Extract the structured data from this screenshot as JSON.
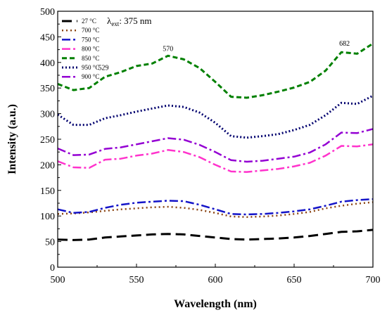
{
  "chart_data": {
    "type": "line",
    "xlabel": "Wavelength (nm)",
    "ylabel": "Intensity (a.u.)",
    "xlim": [
      500,
      700
    ],
    "ylim": [
      0,
      500
    ],
    "xticks": [
      500,
      550,
      600,
      650,
      700
    ],
    "yticks": [
      0,
      50,
      100,
      150,
      200,
      250,
      300,
      350,
      400,
      450,
      500
    ],
    "grid": false,
    "legend_position": "top-left",
    "excitation": {
      "symbol": "λ",
      "subscript": "ext",
      "text": ": 375 nm"
    },
    "annotations": [
      {
        "text": "529",
        "x": 529,
        "y": 376
      },
      {
        "text": "570",
        "x": 570,
        "y": 413
      },
      {
        "text": "682",
        "x": 682,
        "y": 423
      }
    ],
    "series": [
      {
        "name": "27 °C",
        "color": "#000000",
        "dash": "14,7",
        "width": 3,
        "x": [
          500,
          510,
          520,
          530,
          540,
          550,
          560,
          570,
          580,
          590,
          600,
          610,
          620,
          630,
          640,
          650,
          660,
          670,
          680,
          690,
          700
        ],
        "y": [
          54,
          53,
          54,
          58,
          60,
          62,
          64,
          65,
          64,
          61,
          58,
          55,
          54,
          55,
          56,
          58,
          61,
          65,
          69,
          70,
          73
        ]
      },
      {
        "name": "700 °C",
        "color": "#8b4513",
        "dash": "2,4",
        "width": 2.5,
        "x": [
          500,
          510,
          520,
          530,
          540,
          550,
          560,
          570,
          580,
          590,
          600,
          610,
          620,
          630,
          640,
          650,
          660,
          670,
          680,
          690,
          700
        ],
        "y": [
          104,
          105,
          107,
          110,
          113,
          115,
          117,
          118,
          116,
          112,
          106,
          99,
          98,
          99,
          101,
          104,
          108,
          115,
          120,
          124,
          127
        ]
      },
      {
        "name": "750 °C",
        "color": "#1414c8",
        "dash": "12,4,3,4",
        "width": 2.5,
        "x": [
          500,
          510,
          520,
          530,
          540,
          550,
          560,
          570,
          580,
          590,
          600,
          610,
          620,
          630,
          640,
          650,
          660,
          670,
          680,
          690,
          700
        ],
        "y": [
          113,
          106,
          108,
          116,
          122,
          126,
          128,
          130,
          129,
          122,
          113,
          104,
          103,
          104,
          106,
          109,
          113,
          120,
          128,
          131,
          133
        ]
      },
      {
        "name": "800 °C",
        "color": "#ff33cc",
        "dash": "12,4,3,4",
        "width": 2.5,
        "x": [
          500,
          510,
          520,
          530,
          540,
          550,
          560,
          570,
          580,
          590,
          600,
          610,
          620,
          630,
          640,
          650,
          660,
          670,
          680,
          690,
          700
        ],
        "y": [
          207,
          195,
          194,
          210,
          212,
          218,
          222,
          229,
          225,
          215,
          200,
          187,
          186,
          189,
          192,
          197,
          204,
          218,
          237,
          236,
          240
        ]
      },
      {
        "name": "850 °C",
        "color": "#008000",
        "dash": "7,4",
        "width": 3,
        "x": [
          500,
          510,
          520,
          530,
          540,
          550,
          560,
          570,
          580,
          590,
          600,
          610,
          620,
          630,
          640,
          650,
          660,
          670,
          680,
          690,
          700
        ],
        "y": [
          358,
          346,
          350,
          372,
          381,
          393,
          398,
          413,
          406,
          389,
          362,
          333,
          331,
          336,
          343,
          351,
          362,
          384,
          420,
          417,
          437
        ]
      },
      {
        "name": "950 °C",
        "color": "#00006e",
        "dash": "2,3",
        "width": 3,
        "x": [
          500,
          510,
          520,
          530,
          540,
          550,
          560,
          570,
          580,
          590,
          600,
          610,
          620,
          630,
          640,
          650,
          660,
          670,
          680,
          690,
          700
        ],
        "y": [
          298,
          278,
          278,
          291,
          297,
          304,
          310,
          316,
          313,
          302,
          282,
          256,
          253,
          256,
          260,
          268,
          278,
          297,
          321,
          319,
          335
        ]
      },
      {
        "name": "900 °C",
        "color": "#9400d3",
        "dash": "12,4,3,4",
        "width": 2.5,
        "x": [
          500,
          510,
          520,
          530,
          540,
          550,
          560,
          570,
          580,
          590,
          600,
          610,
          620,
          630,
          640,
          650,
          660,
          670,
          680,
          690,
          700
        ],
        "y": [
          232,
          219,
          220,
          231,
          234,
          240,
          246,
          252,
          249,
          239,
          225,
          209,
          206,
          208,
          212,
          216,
          224,
          240,
          263,
          262,
          270
        ]
      }
    ]
  }
}
